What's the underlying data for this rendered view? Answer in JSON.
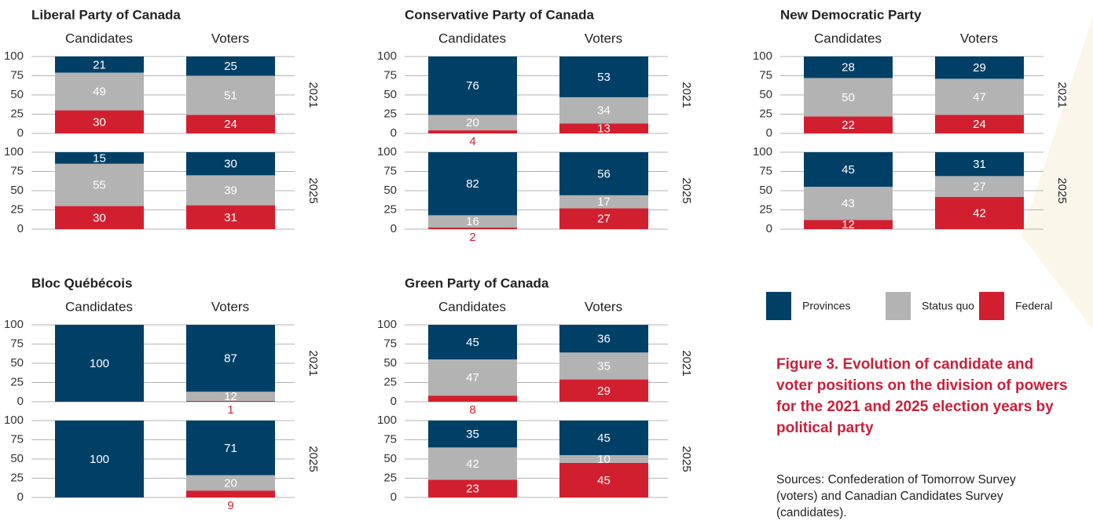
{
  "legend": [
    {
      "name": "Provinces",
      "color": "#003f66"
    },
    {
      "name": "Status quo",
      "color": "#b3b3b3"
    },
    {
      "name": "Federal",
      "color": "#d21f2f"
    }
  ],
  "chart_data": [
    {
      "type": "bar",
      "stacked": true,
      "title": "Liberal Party of Canada",
      "categories": [
        "Candidates",
        "Voters"
      ],
      "ylim": [
        0,
        100
      ],
      "yticks": [
        0,
        25,
        50,
        75,
        100
      ],
      "panels": [
        {
          "label": "2021",
          "series": [
            {
              "values": [
                21,
                25
              ]
            },
            {
              "values": [
                49,
                51
              ]
            },
            {
              "values": [
                30,
                24
              ]
            }
          ]
        },
        {
          "label": "2025",
          "series": [
            {
              "values": [
                15,
                30
              ]
            },
            {
              "values": [
                55,
                39
              ]
            },
            {
              "values": [
                30,
                31
              ]
            }
          ]
        }
      ]
    },
    {
      "type": "bar",
      "stacked": true,
      "title": "Conservative Party of Canada",
      "categories": [
        "Candidates",
        "Voters"
      ],
      "ylim": [
        0,
        100
      ],
      "yticks": [
        0,
        25,
        50,
        75,
        100
      ],
      "panels": [
        {
          "label": "2021",
          "series": [
            {
              "values": [
                76,
                53
              ]
            },
            {
              "values": [
                20,
                34
              ]
            },
            {
              "values": [
                4,
                13
              ]
            }
          ]
        },
        {
          "label": "2025",
          "series": [
            {
              "values": [
                82,
                56
              ]
            },
            {
              "values": [
                16,
                17
              ]
            },
            {
              "values": [
                2,
                27
              ]
            }
          ]
        }
      ]
    },
    {
      "type": "bar",
      "stacked": true,
      "title": "New Democratic Party",
      "categories": [
        "Candidates",
        "Voters"
      ],
      "ylim": [
        0,
        100
      ],
      "yticks": [
        0,
        25,
        50,
        75,
        100
      ],
      "panels": [
        {
          "label": "2021",
          "series": [
            {
              "values": [
                28,
                29
              ]
            },
            {
              "values": [
                50,
                47
              ]
            },
            {
              "values": [
                22,
                24
              ]
            }
          ]
        },
        {
          "label": "2025",
          "series": [
            {
              "values": [
                45,
                31
              ]
            },
            {
              "values": [
                43,
                27
              ]
            },
            {
              "values": [
                12,
                42
              ]
            }
          ]
        }
      ]
    },
    {
      "type": "bar",
      "stacked": true,
      "title": "Bloc Québécois",
      "categories": [
        "Candidates",
        "Voters"
      ],
      "ylim": [
        0,
        100
      ],
      "yticks": [
        0,
        25,
        50,
        75,
        100
      ],
      "panels": [
        {
          "label": "2021",
          "series": [
            {
              "values": [
                100,
                87
              ]
            },
            {
              "values": [
                null,
                12
              ]
            },
            {
              "values": [
                null,
                1
              ]
            }
          ]
        },
        {
          "label": "2025",
          "series": [
            {
              "values": [
                100,
                71
              ]
            },
            {
              "values": [
                null,
                20
              ]
            },
            {
              "values": [
                null,
                9
              ]
            }
          ]
        }
      ]
    },
    {
      "type": "bar",
      "stacked": true,
      "title": "Green Party of Canada",
      "categories": [
        "Candidates",
        "Voters"
      ],
      "ylim": [
        0,
        100
      ],
      "yticks": [
        0,
        25,
        50,
        75,
        100
      ],
      "panels": [
        {
          "label": "2021",
          "series": [
            {
              "values": [
                45,
                36
              ]
            },
            {
              "values": [
                47,
                35
              ]
            },
            {
              "values": [
                8,
                29
              ]
            }
          ]
        },
        {
          "label": "2025",
          "series": [
            {
              "values": [
                35,
                45
              ]
            },
            {
              "values": [
                42,
                10
              ]
            },
            {
              "values": [
                23,
                45
              ]
            }
          ]
        }
      ]
    }
  ],
  "caption": [
    "Figure 3. Evolution of candidate and",
    "voter positions on the division of powers",
    "for the 2021 and 2025 election years by",
    "political party"
  ],
  "sources": [
    "Sources: Confederation of Tomorrow Survey",
    "(voters) and Canadian Candidates Survey",
    "(candidates)."
  ]
}
